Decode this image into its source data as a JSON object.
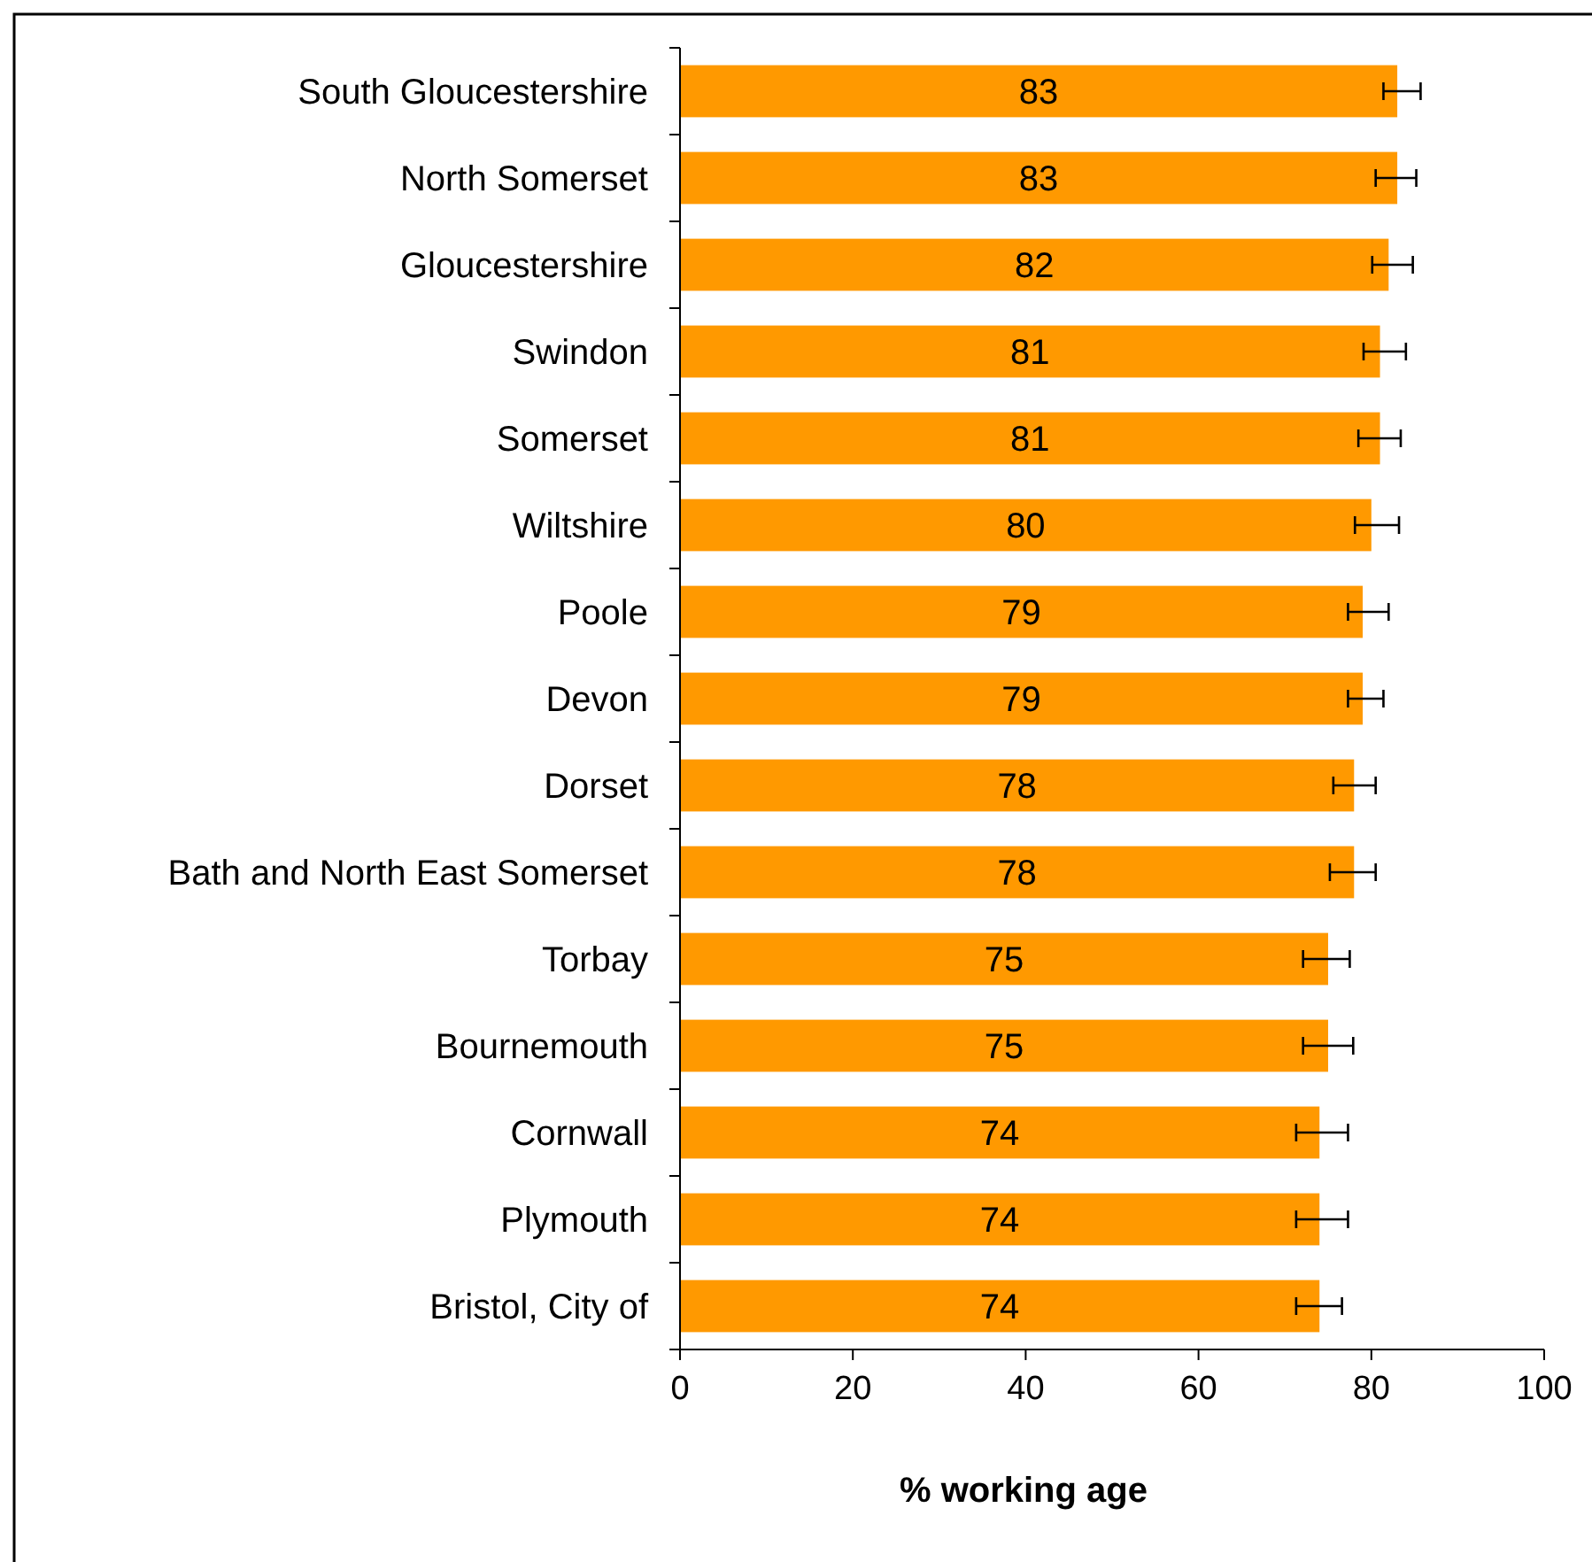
{
  "chart_data": {
    "type": "bar",
    "orientation": "horizontal",
    "xlabel": "% working age",
    "categories": [
      "South Gloucestershire",
      "North Somerset",
      "Gloucestershire",
      "Swindon",
      "Somerset",
      "Wiltshire",
      "Poole",
      "Devon",
      "Dorset",
      "Bath and North East Somerset",
      "Torbay",
      "Bournemouth",
      "Cornwall",
      "Plymouth",
      "Bristol, City of"
    ],
    "values": [
      83,
      83,
      82,
      81,
      81,
      80,
      79,
      79,
      78,
      78,
      75,
      75,
      74,
      74,
      74
    ],
    "errors": [
      [
        81.4,
        85.7
      ],
      [
        80.5,
        85.2
      ],
      [
        80.1,
        84.8
      ],
      [
        79.1,
        84.0
      ],
      [
        78.5,
        83.4
      ],
      [
        78.1,
        83.2
      ],
      [
        77.3,
        82.0
      ],
      [
        77.3,
        81.4
      ],
      [
        75.6,
        80.5
      ],
      [
        75.2,
        80.5
      ],
      [
        72.1,
        77.5
      ],
      [
        72.1,
        77.9
      ],
      [
        71.3,
        77.3
      ],
      [
        71.3,
        77.3
      ],
      [
        71.3,
        76.6
      ]
    ],
    "color": "#ff9900",
    "data_labels": true,
    "xlim": [
      0,
      100
    ],
    "xticks": [
      0,
      20,
      40,
      60,
      80,
      100
    ],
    "grid": false
  }
}
